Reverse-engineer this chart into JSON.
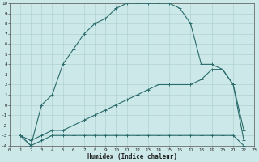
{
  "xlabel": "Humidex (Indice chaleur)",
  "background_color": "#cce8e8",
  "grid_color": "#aacccc",
  "line_color": "#2a6b6b",
  "xlim": [
    0,
    23
  ],
  "ylim": [
    -4,
    10
  ],
  "xticks": [
    0,
    1,
    2,
    3,
    4,
    5,
    6,
    7,
    8,
    9,
    10,
    11,
    12,
    13,
    14,
    15,
    16,
    17,
    18,
    19,
    20,
    21,
    22,
    23
  ],
  "yticks": [
    -4,
    -3,
    -2,
    -1,
    0,
    1,
    2,
    3,
    4,
    5,
    6,
    7,
    8,
    9,
    10
  ],
  "curve_top_x": [
    1,
    2,
    3,
    4,
    5,
    6,
    7,
    8,
    9,
    10,
    11,
    12,
    13,
    14,
    15,
    16,
    17,
    18,
    19,
    20,
    21,
    22
  ],
  "curve_top_y": [
    -3,
    -4,
    0,
    1,
    4,
    5.5,
    7,
    8,
    8.5,
    9.5,
    10,
    10,
    10,
    10,
    10,
    9.5,
    8,
    4,
    4,
    3.5,
    2,
    -3.5
  ],
  "curve_mid_x": [
    1,
    2,
    3,
    4,
    5,
    6,
    7,
    8,
    9,
    10,
    11,
    12,
    13,
    14,
    15,
    16,
    17,
    18,
    19,
    20,
    21,
    22
  ],
  "curve_mid_y": [
    -3,
    -3.5,
    -3,
    -2.5,
    -2.5,
    -2,
    -1.5,
    -1,
    -0.5,
    0,
    0.5,
    1,
    1.5,
    2,
    2,
    2,
    2,
    2.5,
    3.5,
    3.5,
    2,
    -2.5
  ],
  "curve_bot_x": [
    1,
    2,
    3,
    4,
    5,
    6,
    7,
    8,
    9,
    10,
    11,
    12,
    13,
    14,
    15,
    16,
    17,
    18,
    19,
    20,
    21,
    22
  ],
  "curve_bot_y": [
    -3,
    -4,
    -3.5,
    -3,
    -3,
    -3,
    -3,
    -3,
    -3,
    -3,
    -3,
    -3,
    -3,
    -3,
    -3,
    -3,
    -3,
    -3,
    -3,
    -3,
    -3,
    -4
  ]
}
